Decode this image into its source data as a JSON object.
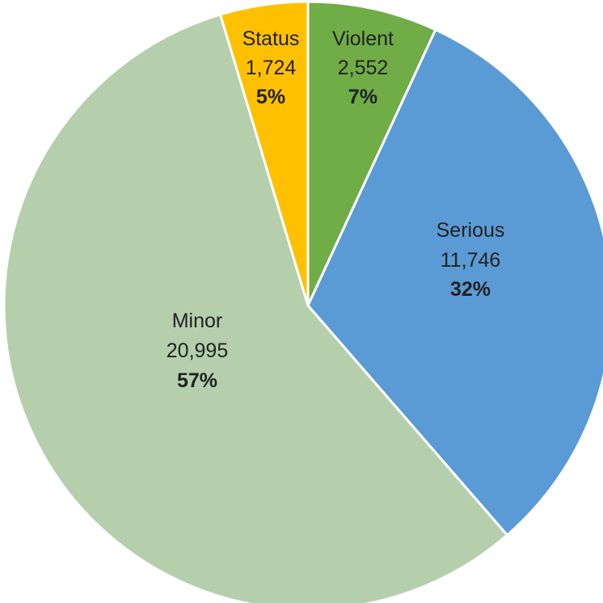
{
  "chart_data": {
    "type": "pie",
    "title": "",
    "start_angle_deg": 0,
    "direction": "clockwise",
    "slices": [
      {
        "name": "Violent",
        "value": 2552,
        "value_label": "2,552",
        "percent_label": "7%",
        "color": "#70ad47"
      },
      {
        "name": "Serious",
        "value": 11746,
        "value_label": "11,746",
        "percent_label": "32%",
        "color": "#5b9bd5"
      },
      {
        "name": "Minor",
        "value": 20995,
        "value_label": "20,995",
        "percent_label": "57%",
        "color": "#b5cfac"
      },
      {
        "name": "Status",
        "value": 1724,
        "value_label": "1,724",
        "percent_label": "5%",
        "color": "#ffc000"
      }
    ]
  }
}
